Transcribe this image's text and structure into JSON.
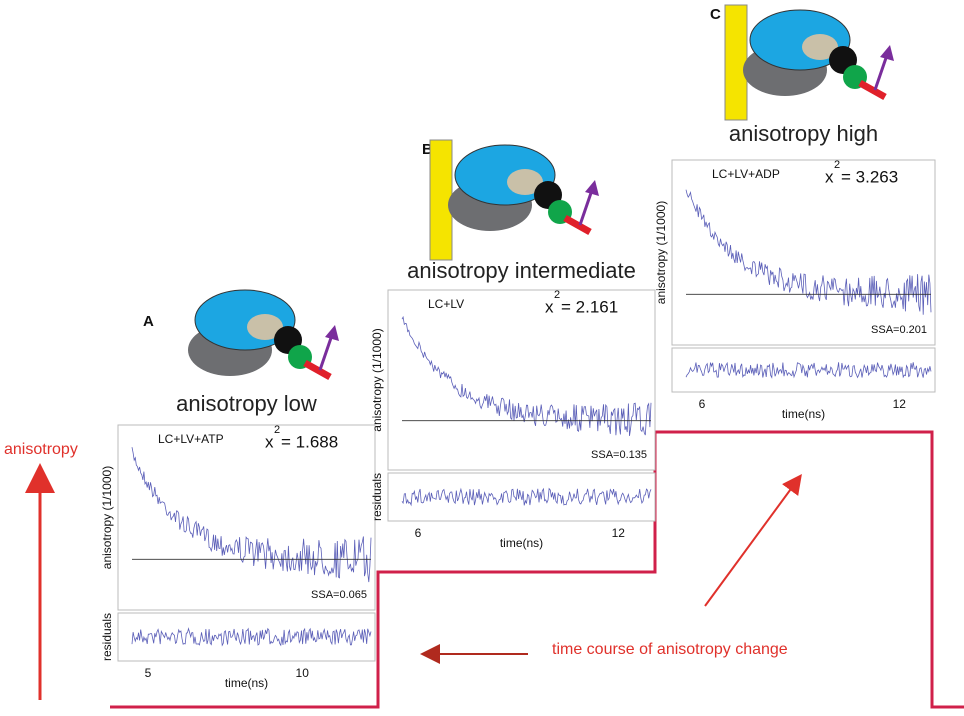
{
  "panels": [
    {
      "label": "A",
      "title": "anisotropy low",
      "condition": "LC+LV+ATP",
      "chi_symbol": "x",
      "chi_exponent": "2",
      "chi_value": "= 1.688",
      "ssa": "SSA=0.065",
      "y_label": "anisotropy (1/1000)",
      "residuals_label": "residuals",
      "x_label": "time(ns)",
      "x_ticks": [
        "5",
        "10"
      ]
    },
    {
      "label": "B",
      "title": "anisotropy intermediate",
      "condition": "LC+LV",
      "chi_symbol": "x",
      "chi_exponent": "2",
      "chi_value": "= 2.161",
      "ssa": "SSA=0.135",
      "y_label": "anisotropy (1/1000)",
      "residuals_label": "residuals",
      "x_label": "time(ns)",
      "x_ticks": [
        "6",
        "12"
      ]
    },
    {
      "label": "C",
      "title": "anisotropy high",
      "condition": "LC+LV+ADP",
      "chi_symbol": "x",
      "chi_exponent": "2",
      "chi_value": "= 3.263",
      "ssa": "SSA=0.201",
      "y_label": "anisotropy (1/1000)",
      "residuals_label": "",
      "x_label": "time(ns)",
      "x_ticks": [
        "6",
        "12"
      ]
    }
  ],
  "axis_label": "anisotropy",
  "time_course_label": "time course of anisotropy change"
}
